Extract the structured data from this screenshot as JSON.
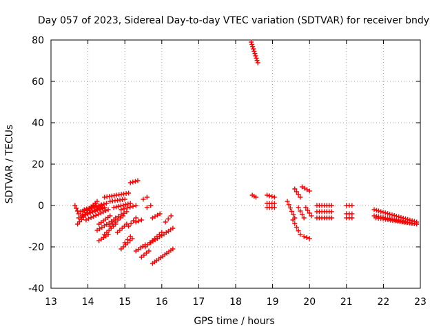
{
  "chart_data": {
    "type": "scatter",
    "title": "Day 057 of 2023, Sidereal Day-to-day VTEC variation (SDTVAR) for receiver bndy",
    "xlabel": "GPS time / hours",
    "ylabel": "SDTVAR / TECUs",
    "xlim": [
      13,
      23
    ],
    "ylim": [
      -40,
      80
    ],
    "xticks": [
      "13",
      "14",
      "15",
      "16",
      "17",
      "18",
      "19",
      "20",
      "21",
      "22",
      "23"
    ],
    "yticks": [
      "-40",
      "-20",
      "0",
      "20",
      "40",
      "60",
      "80"
    ],
    "grid": true,
    "marker": "+",
    "marker_color": "#ff0000",
    "segments": [
      {
        "x0": 13.65,
        "y0": 0.0,
        "x1": 13.75,
        "y1": -4.0,
        "n": 4
      },
      {
        "x0": 13.72,
        "y0": -9.0,
        "x1": 14.2,
        "y1": 1.0,
        "n": 10
      },
      {
        "x0": 13.75,
        "y0": -6.0,
        "x1": 14.25,
        "y1": 2.0,
        "n": 10
      },
      {
        "x0": 13.8,
        "y0": -3.0,
        "x1": 14.35,
        "y1": 0.0,
        "n": 10
      },
      {
        "x0": 13.85,
        "y0": -5.0,
        "x1": 14.4,
        "y1": -1.0,
        "n": 9
      },
      {
        "x0": 13.9,
        "y0": -2.0,
        "x1": 14.5,
        "y1": 1.0,
        "n": 10
      },
      {
        "x0": 13.95,
        "y0": -7.0,
        "x1": 14.55,
        "y1": -2.0,
        "n": 10
      },
      {
        "x0": 14.0,
        "y0": -4.0,
        "x1": 14.45,
        "y1": -1.0,
        "n": 8
      },
      {
        "x0": 14.3,
        "y0": -9.0,
        "x1": 14.6,
        "y1": -5.0,
        "n": 6
      },
      {
        "x0": 14.45,
        "y0": 4.0,
        "x1": 15.1,
        "y1": 6.0,
        "n": 11
      },
      {
        "x0": 14.6,
        "y0": 2.0,
        "x1": 15.0,
        "y1": 3.0,
        "n": 7
      },
      {
        "x0": 14.25,
        "y0": -12.0,
        "x1": 14.7,
        "y1": -7.0,
        "n": 8
      },
      {
        "x0": 14.3,
        "y0": -17.0,
        "x1": 14.55,
        "y1": -14.0,
        "n": 5
      },
      {
        "x0": 14.45,
        "y0": -14.0,
        "x1": 14.75,
        "y1": -9.0,
        "n": 6
      },
      {
        "x0": 14.6,
        "y0": -10.0,
        "x1": 14.95,
        "y1": -5.0,
        "n": 6
      },
      {
        "x0": 14.7,
        "y0": -1.0,
        "x1": 15.15,
        "y1": 1.0,
        "n": 8
      },
      {
        "x0": 14.75,
        "y0": -6.0,
        "x1": 15.05,
        "y1": -3.0,
        "n": 5
      },
      {
        "x0": 14.9,
        "y0": -2.0,
        "x1": 15.3,
        "y1": 0.0,
        "n": 6
      },
      {
        "x0": 14.8,
        "y0": -13.0,
        "x1": 15.05,
        "y1": -9.0,
        "n": 5
      },
      {
        "x0": 14.9,
        "y0": -21.0,
        "x1": 15.2,
        "y1": -16.0,
        "n": 6
      },
      {
        "x0": 15.1,
        "y0": -10.0,
        "x1": 15.3,
        "y1": -6.0,
        "n": 4
      },
      {
        "x0": 15.3,
        "y0": -8.0,
        "x1": 15.45,
        "y1": -7.0,
        "n": 3
      },
      {
        "x0": 15.0,
        "y0": -18.0,
        "x1": 15.15,
        "y1": -15.0,
        "n": 3
      },
      {
        "x0": 15.15,
        "y0": 11.0,
        "x1": 15.35,
        "y1": 12.0,
        "n": 4
      },
      {
        "x0": 15.3,
        "y0": -22.0,
        "x1": 15.55,
        "y1": -19.0,
        "n": 5
      },
      {
        "x0": 15.45,
        "y0": -25.0,
        "x1": 15.65,
        "y1": -22.0,
        "n": 4
      },
      {
        "x0": 15.55,
        "y0": -20.0,
        "x1": 16.0,
        "y1": -13.0,
        "n": 8
      },
      {
        "x0": 15.7,
        "y0": -18.0,
        "x1": 16.3,
        "y1": -11.0,
        "n": 11
      },
      {
        "x0": 15.75,
        "y0": -28.0,
        "x1": 16.3,
        "y1": -21.0,
        "n": 11
      },
      {
        "x0": 15.5,
        "y0": 3.0,
        "x1": 15.6,
        "y1": 4.0,
        "n": 2
      },
      {
        "x0": 15.6,
        "y0": -1.0,
        "x1": 15.7,
        "y1": 0.0,
        "n": 2
      },
      {
        "x0": 15.75,
        "y0": -6.0,
        "x1": 15.95,
        "y1": -4.0,
        "n": 4
      },
      {
        "x0": 16.1,
        "y0": -8.0,
        "x1": 16.25,
        "y1": -5.0,
        "n": 3
      },
      {
        "x0": 18.42,
        "y0": 79.0,
        "x1": 18.6,
        "y1": 69.0,
        "n": 10
      },
      {
        "x0": 18.45,
        "y0": 5.0,
        "x1": 18.55,
        "y1": 4.0,
        "n": 3
      },
      {
        "x0": 18.85,
        "y0": 5.0,
        "x1": 19.05,
        "y1": 4.0,
        "n": 4
      },
      {
        "x0": 18.85,
        "y0": 1.0,
        "x1": 19.05,
        "y1": 1.0,
        "n": 4
      },
      {
        "x0": 18.85,
        "y0": -1.0,
        "x1": 19.05,
        "y1": -1.0,
        "n": 4
      },
      {
        "x0": 19.4,
        "y0": 2.0,
        "x1": 19.6,
        "y1": -6.0,
        "n": 6
      },
      {
        "x0": 19.55,
        "y0": -7.0,
        "x1": 19.75,
        "y1": -14.0,
        "n": 5
      },
      {
        "x0": 19.6,
        "y0": 8.0,
        "x1": 19.75,
        "y1": 4.0,
        "n": 4
      },
      {
        "x0": 19.7,
        "y0": -1.0,
        "x1": 19.85,
        "y1": -6.0,
        "n": 4
      },
      {
        "x0": 19.8,
        "y0": 9.0,
        "x1": 20.0,
        "y1": 7.0,
        "n": 4
      },
      {
        "x0": 19.9,
        "y0": -1.0,
        "x1": 20.05,
        "y1": -5.0,
        "n": 4
      },
      {
        "x0": 19.85,
        "y0": -15.0,
        "x1": 20.0,
        "y1": -16.0,
        "n": 3
      },
      {
        "x0": 20.2,
        "y0": 0.0,
        "x1": 20.6,
        "y1": 0.0,
        "n": 7
      },
      {
        "x0": 20.2,
        "y0": -3.0,
        "x1": 20.6,
        "y1": -3.0,
        "n": 7
      },
      {
        "x0": 20.2,
        "y0": -6.0,
        "x1": 20.6,
        "y1": -6.0,
        "n": 7
      },
      {
        "x0": 21.0,
        "y0": 0.0,
        "x1": 21.15,
        "y1": 0.0,
        "n": 3
      },
      {
        "x0": 21.0,
        "y0": -4.0,
        "x1": 21.15,
        "y1": -4.0,
        "n": 3
      },
      {
        "x0": 21.0,
        "y0": -6.0,
        "x1": 21.15,
        "y1": -6.0,
        "n": 3
      },
      {
        "x0": 21.75,
        "y0": -2.0,
        "x1": 22.9,
        "y1": -8.0,
        "n": 20
      },
      {
        "x0": 21.75,
        "y0": -5.0,
        "x1": 22.9,
        "y1": -9.0,
        "n": 20
      },
      {
        "x0": 21.8,
        "y0": -6.0,
        "x1": 22.9,
        "y1": -9.0,
        "n": 18
      }
    ]
  }
}
